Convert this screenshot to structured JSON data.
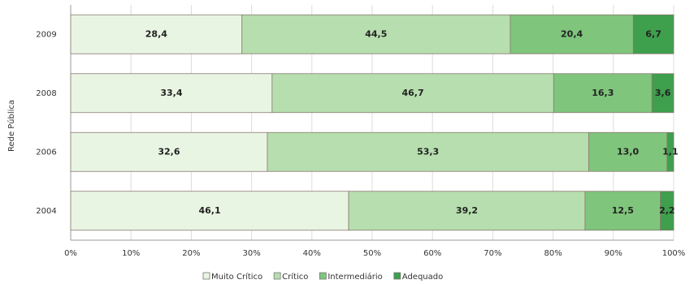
{
  "chart_data": {
    "type": "stacked-bar-horizontal",
    "y_axis_label": "Rede Pública",
    "categories": [
      "2009",
      "2008",
      "2006",
      "2004"
    ],
    "series": [
      {
        "name": "Muito Crítico",
        "color": "#e9f5e3",
        "values": [
          28.4,
          33.4,
          32.6,
          46.1
        ],
        "value_labels": [
          "28,4",
          "33,4",
          "32,6",
          "46,1"
        ]
      },
      {
        "name": "Crítico",
        "color": "#b6deae",
        "values": [
          44.5,
          46.7,
          53.3,
          39.2
        ],
        "value_labels": [
          "44,5",
          "46,7",
          "53,3",
          "39,2"
        ]
      },
      {
        "name": "Intermediário",
        "color": "#7fc57c",
        "values": [
          20.4,
          16.3,
          13.0,
          12.5
        ],
        "value_labels": [
          "20,4",
          "16,3",
          "13,0",
          "12,5"
        ]
      },
      {
        "name": "Adequado",
        "color": "#3e9f4c",
        "values": [
          6.7,
          3.6,
          1.1,
          2.2
        ],
        "value_labels": [
          "6,7",
          "3,6",
          "1,1",
          "2,2"
        ]
      }
    ],
    "xlim": [
      0,
      100
    ],
    "xticks": [
      {
        "value": 0,
        "label": "0%"
      },
      {
        "value": 10,
        "label": "10%"
      },
      {
        "value": 20,
        "label": "20%"
      },
      {
        "value": 30,
        "label": "30%"
      },
      {
        "value": 40,
        "label": "40%"
      },
      {
        "value": 50,
        "label": "50%"
      },
      {
        "value": 60,
        "label": "60%"
      },
      {
        "value": 70,
        "label": "70%"
      },
      {
        "value": 80,
        "label": "80%"
      },
      {
        "value": 90,
        "label": "90%"
      },
      {
        "value": 100,
        "label": "100%"
      }
    ],
    "grid": true
  }
}
